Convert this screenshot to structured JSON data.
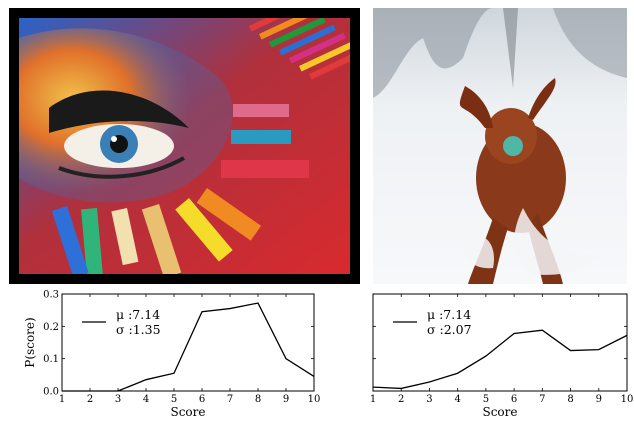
{
  "images": [
    {
      "name": "pastel-eye-artwork",
      "description_icon": "art-photo-icon"
    },
    {
      "name": "dog-in-snow",
      "description_icon": "dog-photo-icon"
    }
  ],
  "chart_data": [
    {
      "type": "line",
      "x": [
        1,
        2,
        3,
        4,
        5,
        6,
        7,
        8,
        9,
        10
      ],
      "values": [
        0.0,
        0.0,
        0.0,
        0.035,
        0.055,
        0.245,
        0.255,
        0.272,
        0.1,
        0.045
      ],
      "xlabel": "Score",
      "ylabel": "P(score)",
      "xlim": [
        1,
        10
      ],
      "ylim": [
        0.0,
        0.3
      ],
      "xticks": [
        "1",
        "2",
        "3",
        "4",
        "5",
        "6",
        "7",
        "8",
        "9",
        "10"
      ],
      "yticks": [
        "0.0",
        "0.1",
        "0.2",
        "0.3"
      ],
      "legend": {
        "mu": "μ :7.14",
        "sigma": "σ :1.35",
        "placement": "top-left"
      },
      "grid": false,
      "color": "#000000"
    },
    {
      "type": "line",
      "x": [
        1,
        2,
        3,
        4,
        5,
        6,
        7,
        8,
        9,
        10
      ],
      "values": [
        0.012,
        0.008,
        0.028,
        0.055,
        0.108,
        0.178,
        0.188,
        0.125,
        0.128,
        0.172
      ],
      "xlabel": "Score",
      "ylabel": "",
      "xlim": [
        1,
        10
      ],
      "ylim": [
        0.0,
        0.3
      ],
      "xticks": [
        "1",
        "2",
        "3",
        "4",
        "5",
        "6",
        "7",
        "8",
        "9",
        "10"
      ],
      "yticks": [],
      "legend": {
        "mu": "μ :7.14",
        "sigma": "σ :2.07",
        "placement": "top-left"
      },
      "grid": false,
      "color": "#000000"
    }
  ]
}
